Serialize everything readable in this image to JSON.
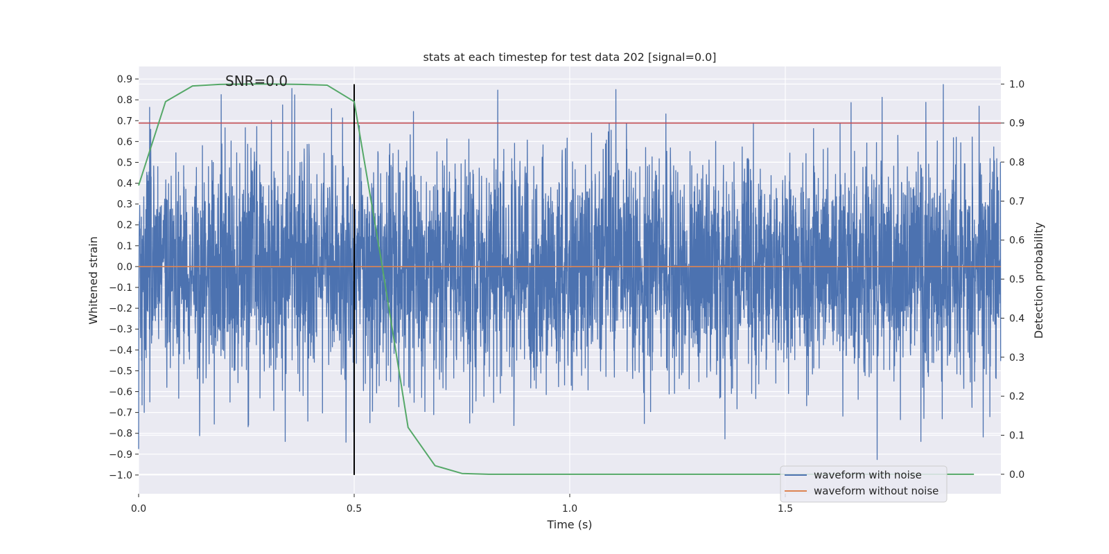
{
  "chart_data": {
    "type": "line",
    "title": "stats at each timestep for test data 202 [signal=0.0]",
    "xlabel": "Time (s)",
    "ylabel_left": "Whitened strain",
    "ylabel_right": "Detection probability",
    "annotation": "SNR=0.0",
    "xlim": [
      0.0,
      2.0
    ],
    "ylim_left": [
      -1.09,
      0.96
    ],
    "ylim_right": [
      -0.05,
      1.045
    ],
    "x_ticks": [
      "0.0",
      "0.5",
      "1.0",
      "1.5"
    ],
    "x_tick_values": [
      0.0,
      0.5,
      1.0,
      1.5
    ],
    "y_left_ticks": [
      "−1.0",
      "−0.9",
      "−0.8",
      "−0.7",
      "−0.6",
      "−0.5",
      "−0.4",
      "−0.3",
      "−0.2",
      "−0.1",
      "0.0",
      "0.1",
      "0.2",
      "0.3",
      "0.4",
      "0.5",
      "0.6",
      "0.7",
      "0.8",
      "0.9"
    ],
    "y_left_tick_values": [
      -1.0,
      -0.9,
      -0.8,
      -0.7,
      -0.6,
      -0.5,
      -0.4,
      -0.3,
      -0.2,
      -0.1,
      0.0,
      0.1,
      0.2,
      0.3,
      0.4,
      0.5,
      0.6,
      0.7,
      0.8,
      0.9
    ],
    "y_right_ticks": [
      "0.0",
      "0.1",
      "0.2",
      "0.3",
      "0.4",
      "0.5",
      "0.6",
      "0.7",
      "0.8",
      "0.9",
      "1.0"
    ],
    "y_right_tick_values": [
      0.0,
      0.1,
      0.2,
      0.3,
      0.4,
      0.5,
      0.6,
      0.7,
      0.8,
      0.9,
      1.0
    ],
    "grid": true,
    "legend_position": "lower right",
    "series": [
      {
        "name": "waveform with noise",
        "color": "#4c72b0",
        "axis": "left",
        "kind": "noise",
        "sample_rate_hz": 2048,
        "peak_amplitude": 0.88,
        "note_visible": "dense noisy trace spanning about -0.95 to 0.88"
      },
      {
        "name": "waveform without noise",
        "color": "#dd8452",
        "axis": "left",
        "x": [
          0.0,
          2.0
        ],
        "y": [
          0.0,
          0.0
        ]
      },
      {
        "color": "#55a868",
        "axis": "right",
        "x": [
          0.0,
          0.0625,
          0.125,
          0.1875,
          0.25,
          0.3125,
          0.375,
          0.4375,
          0.5,
          0.5625,
          0.625,
          0.6875,
          0.75,
          0.8125,
          0.875,
          0.9375,
          1.0,
          1.0625,
          1.125,
          1.1875,
          1.25,
          1.3125,
          1.375,
          1.4375,
          1.5,
          1.5625,
          1.625,
          1.6875,
          1.75,
          1.8125,
          1.875,
          1.9375
        ],
        "y": [
          0.74,
          0.955,
          0.995,
          0.999,
          1.0,
          1.0,
          0.999,
          0.997,
          0.955,
          0.55,
          0.12,
          0.022,
          0.002,
          0.0,
          0.0,
          0.0,
          0.0,
          0.0,
          0.0,
          0.0,
          0.0,
          0.0,
          0.0,
          0.0,
          0.0,
          0.0,
          0.0,
          0.0,
          0.0,
          0.0,
          0.0,
          0.0
        ]
      },
      {
        "color": "#c44e52",
        "axis": "right",
        "kind": "horizontal-line",
        "y": 0.9
      },
      {
        "color": "#000000",
        "axis": "left",
        "kind": "vertical-line",
        "x": 0.5,
        "y_range": [
          -1.0,
          0.875
        ]
      }
    ]
  }
}
